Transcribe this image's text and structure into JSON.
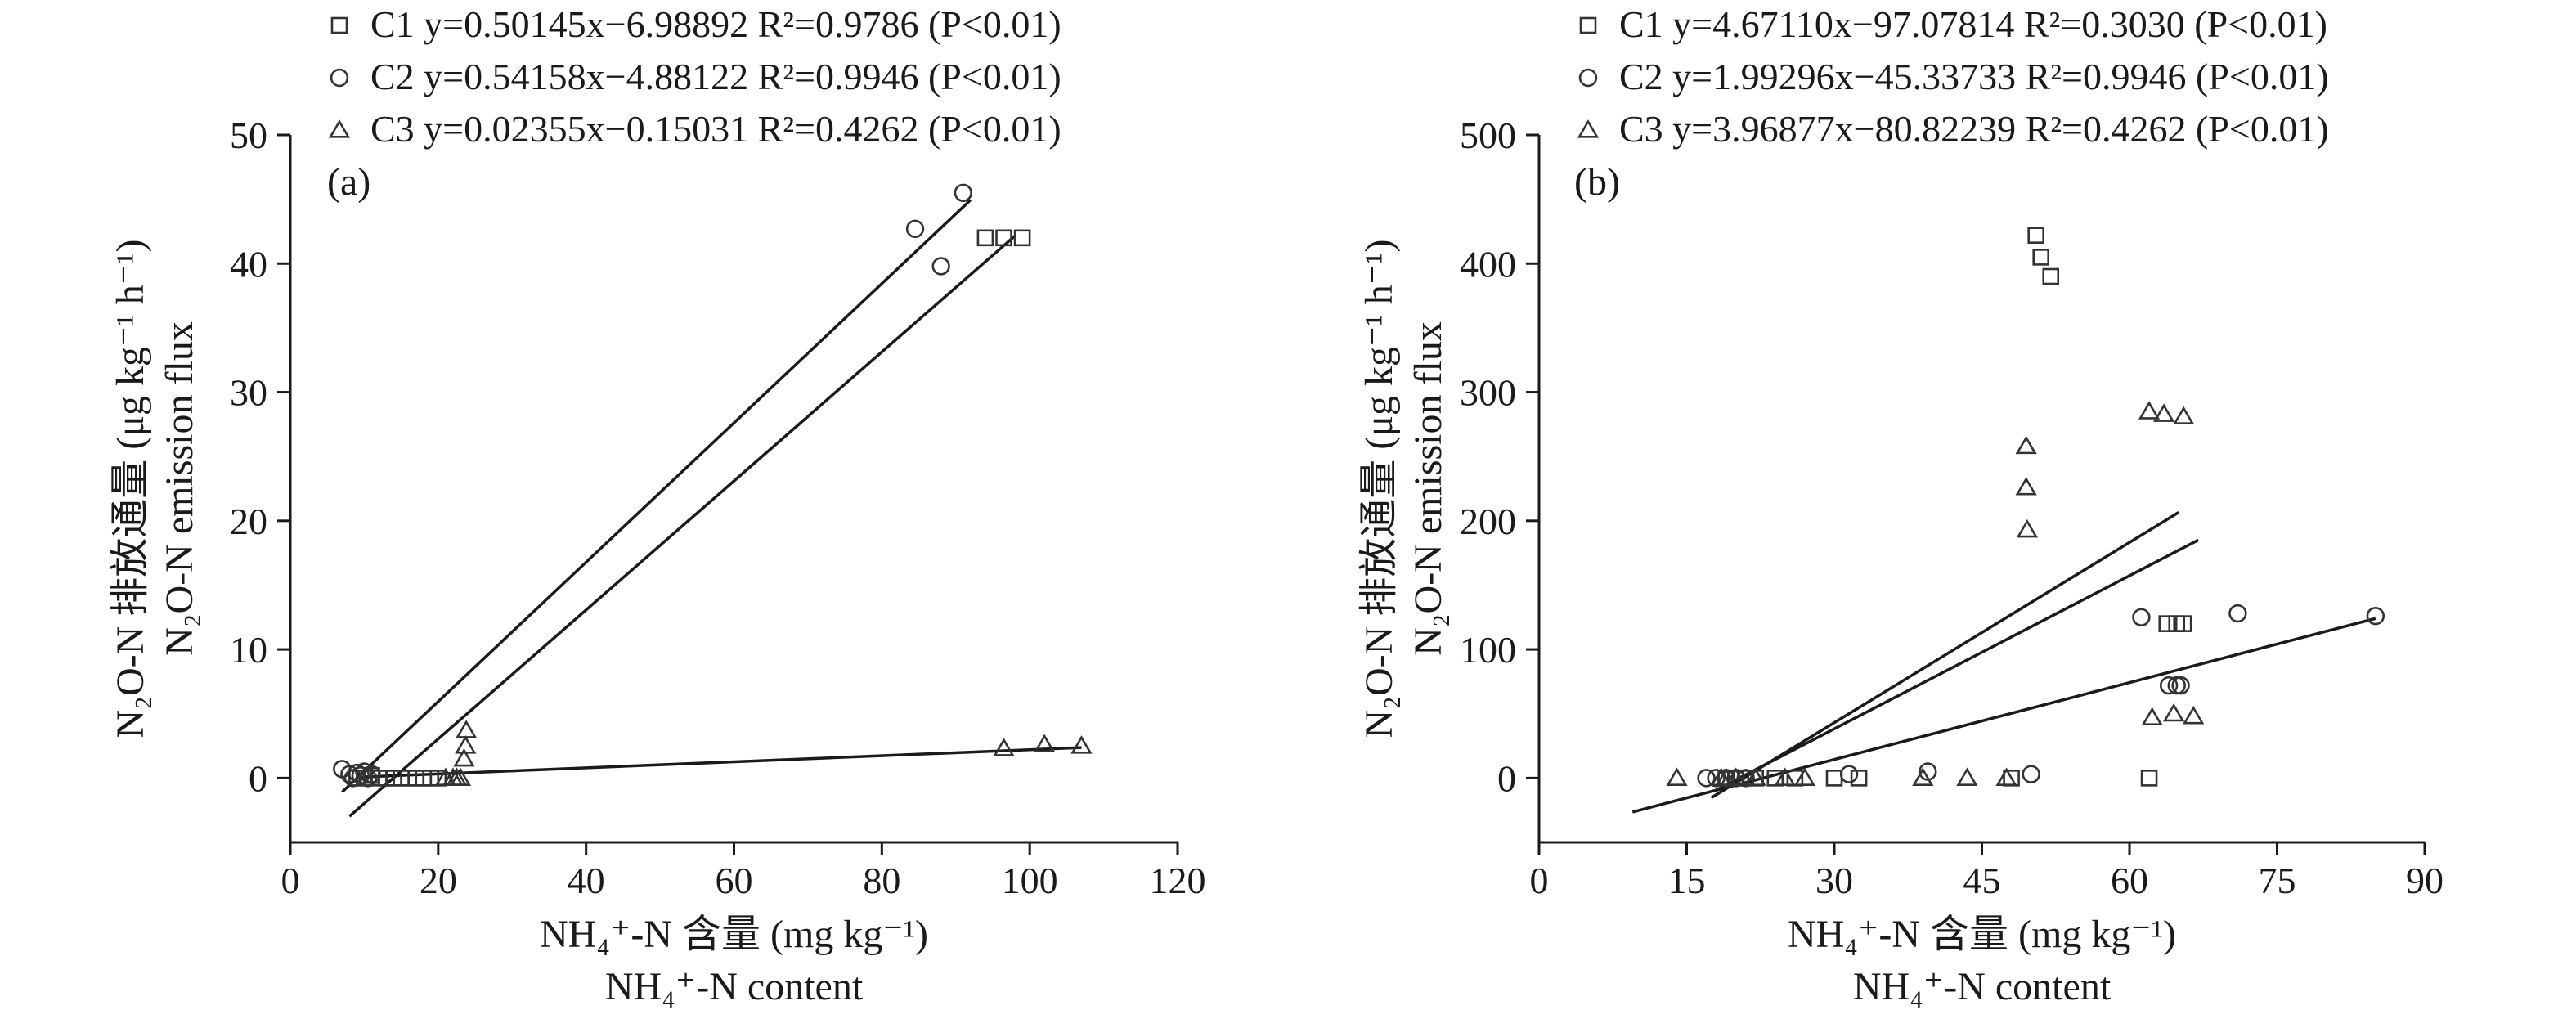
{
  "chart_data": [
    {
      "type": "scatter",
      "panel": "(a)",
      "xlabel_main": "NH₄⁺-N 含量 (mg kg⁻¹)",
      "xlabel_en": "NH₄⁺-N content",
      "ylabel_main": "N₂O-N 排放通量 (μg kg⁻¹ h⁻¹)",
      "ylabel_en": "N₂O-N emission flux",
      "xlim": [
        0,
        120
      ],
      "ylim": [
        -5,
        50
      ],
      "xticks": [
        0,
        20,
        40,
        60,
        80,
        100,
        120
      ],
      "yticks": [
        0,
        10,
        20,
        30,
        40,
        50
      ],
      "legend_placement": "top-left outside plot",
      "series": [
        {
          "name": "C1",
          "marker": "square",
          "equation": "y=0.50145x−6.98892",
          "r2": "R²=0.9786",
          "p": "(P<0.01)",
          "fit": {
            "slope": 0.50145,
            "intercept": -6.98892,
            "x_range": [
              8,
              98
            ]
          },
          "points": [
            [
              9,
              0
            ],
            [
              10,
              0
            ],
            [
              11,
              0.2
            ],
            [
              12,
              0
            ],
            [
              13,
              0
            ],
            [
              14,
              0
            ],
            [
              15,
              0
            ],
            [
              16,
              0
            ],
            [
              17,
              0
            ],
            [
              18,
              0
            ],
            [
              19,
              0
            ],
            [
              20,
              0
            ],
            [
              94,
              42
            ],
            [
              96.5,
              42
            ],
            [
              99,
              42
            ]
          ]
        },
        {
          "name": "C2",
          "marker": "circle",
          "equation": "y=0.54158x−4.88122",
          "r2": "R²=0.9946",
          "p": "(P<0.01)",
          "fit": {
            "slope": 0.54158,
            "intercept": -4.88122,
            "x_range": [
              7,
              92
            ]
          },
          "points": [
            [
              7,
              0.7
            ],
            [
              8,
              0.3
            ],
            [
              8.5,
              0
            ],
            [
              9,
              0.4
            ],
            [
              9.5,
              0.2
            ],
            [
              10,
              0.5
            ],
            [
              10.5,
              0
            ],
            [
              11,
              0.3
            ],
            [
              84.5,
              42.7
            ],
            [
              88,
              39.8
            ],
            [
              91,
              45.5
            ]
          ]
        },
        {
          "name": "C3",
          "marker": "triangle",
          "equation": "y=0.02355x−0.15031",
          "r2": "R²=0.4262",
          "p": "(P<0.01)",
          "fit": {
            "slope": 0.02355,
            "intercept": -0.15031,
            "x_range": [
              9,
              107
            ]
          },
          "points": [
            [
              21,
              0
            ],
            [
              22,
              0
            ],
            [
              22.5,
              0
            ],
            [
              23,
              0
            ],
            [
              23.5,
              1.5
            ],
            [
              23.7,
              2.5
            ],
            [
              23.8,
              3.7
            ],
            [
              96.5,
              2.3
            ],
            [
              102,
              2.6
            ],
            [
              107,
              2.5
            ]
          ]
        }
      ]
    },
    {
      "type": "scatter",
      "panel": "(b)",
      "xlabel_main": "NH₄⁺-N 含量 (mg kg⁻¹)",
      "xlabel_en": "NH₄⁺-N content",
      "ylabel_main": "N₂O-N 排放通量 (μg kg⁻¹ h⁻¹)",
      "ylabel_en": "N₂O-N emission flux",
      "xlim": [
        0,
        90
      ],
      "ylim": [
        -50,
        500
      ],
      "xticks": [
        0,
        15,
        30,
        45,
        60,
        75,
        90
      ],
      "yticks": [
        0,
        100,
        200,
        300,
        400,
        500
      ],
      "legend_placement": "top-left outside plot",
      "series": [
        {
          "name": "C1",
          "marker": "square",
          "equation": "y=4.67110x−97.07814",
          "r2": "R²=0.3030",
          "p": "(P<0.01)",
          "fit": {
            "slope": 4.6711,
            "intercept": -97.07814,
            "x_range": [
              17.5,
              65
            ]
          },
          "points": [
            [
              19,
              0
            ],
            [
              20,
              0
            ],
            [
              21,
              0
            ],
            [
              22,
              0
            ],
            [
              24,
              0
            ],
            [
              26,
              0
            ],
            [
              30,
              0
            ],
            [
              32.5,
              0
            ],
            [
              48,
              0
            ],
            [
              50.5,
              422
            ],
            [
              51,
              405
            ],
            [
              52,
              390
            ],
            [
              62,
              0
            ],
            [
              63.8,
              120
            ],
            [
              64.8,
              120
            ],
            [
              65.5,
              120
            ]
          ]
        },
        {
          "name": "C2",
          "marker": "circle",
          "equation": "y=1.99296x−45.33733",
          "r2": "R²=0.9946",
          "p": "(P<0.01)",
          "fit": {
            "slope": 1.99296,
            "intercept": -45.33733,
            "x_range": [
              9.5,
              85
            ]
          },
          "points": [
            [
              17,
              0
            ],
            [
              18,
              0
            ],
            [
              19,
              0
            ],
            [
              20,
              0
            ],
            [
              21,
              0
            ],
            [
              31.5,
              3
            ],
            [
              39.5,
              5
            ],
            [
              50,
              3
            ],
            [
              61.2,
              125
            ],
            [
              64,
              72
            ],
            [
              64.8,
              72
            ],
            [
              65.2,
              72
            ],
            [
              71,
              128
            ],
            [
              85,
              126
            ]
          ]
        },
        {
          "name": "C3",
          "marker": "triangle",
          "equation": "y=3.96877x−80.82239",
          "r2": "R²=0.4262",
          "p": "(P<0.01)",
          "fit": {
            "slope": 3.96877,
            "intercept": -80.82239,
            "x_range": [
              18,
              67
            ]
          },
          "points": [
            [
              14,
              0
            ],
            [
              18.5,
              0
            ],
            [
              19,
              0
            ],
            [
              20,
              0
            ],
            [
              22,
              0
            ],
            [
              25,
              0
            ],
            [
              27,
              0
            ],
            [
              39,
              0
            ],
            [
              43.5,
              0
            ],
            [
              47.5,
              0
            ],
            [
              49.5,
              258
            ],
            [
              49.5,
              226
            ],
            [
              49.6,
              193
            ],
            [
              62,
              285
            ],
            [
              63.5,
              283
            ],
            [
              65.5,
              281
            ],
            [
              62.3,
              47
            ],
            [
              64.5,
              50
            ],
            [
              66.5,
              48
            ]
          ]
        }
      ]
    }
  ]
}
